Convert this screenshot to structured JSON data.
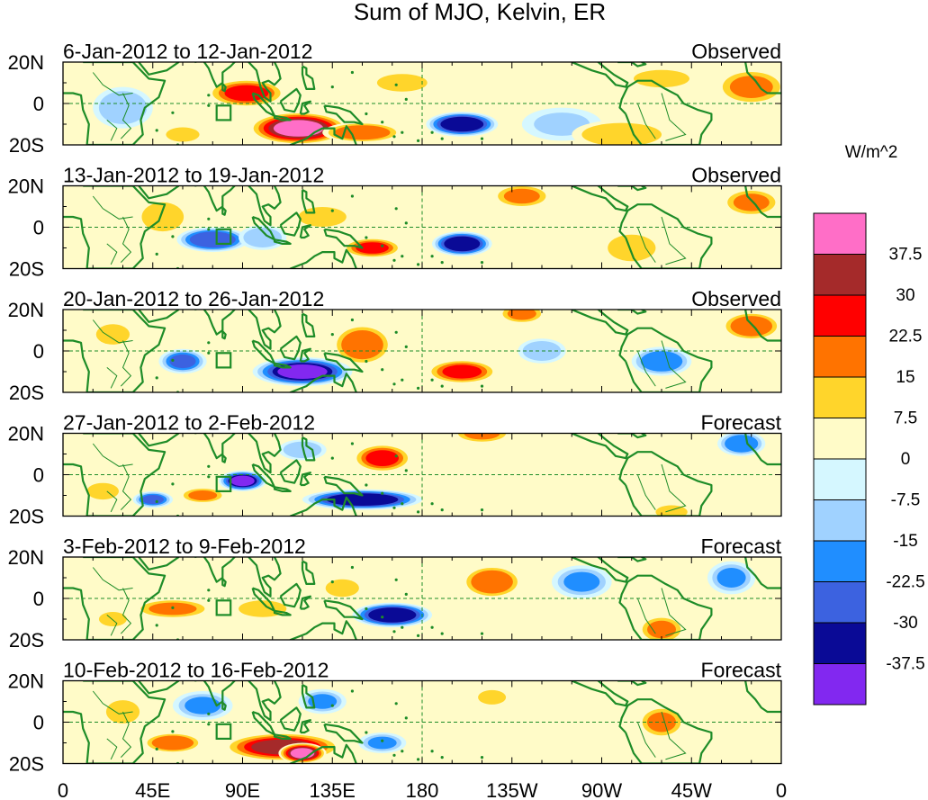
{
  "title": "Sum of MJO, Kelvin, ER",
  "panels": [
    {
      "date_range": "6-Jan-2012 to 12-Jan-2012",
      "status": "Observed",
      "blobs": [
        {
          "lon": 92,
          "lat": 5,
          "rx": 20,
          "ry": 7,
          "v": 25
        },
        {
          "lon": 118,
          "lat": -12,
          "rx": 25,
          "ry": 8,
          "v": 38
        },
        {
          "lon": 150,
          "lat": -14,
          "rx": 20,
          "ry": 5,
          "v": 22
        },
        {
          "lon": 200,
          "lat": -10,
          "rx": 18,
          "ry": 6,
          "v": -36
        },
        {
          "lon": 30,
          "lat": -2,
          "rx": 15,
          "ry": 10,
          "v": -12
        },
        {
          "lon": 250,
          "lat": -10,
          "rx": 20,
          "ry": 8,
          "v": -8
        },
        {
          "lon": 345,
          "lat": 8,
          "rx": 18,
          "ry": 9,
          "v": 16
        },
        {
          "lon": 280,
          "lat": -15,
          "rx": 25,
          "ry": 7,
          "v": 14
        },
        {
          "lon": 170,
          "lat": 10,
          "rx": 18,
          "ry": 6,
          "v": 9
        },
        {
          "lon": 60,
          "lat": -15,
          "rx": 12,
          "ry": 5,
          "v": 10
        },
        {
          "lon": 300,
          "lat": 12,
          "rx": 20,
          "ry": 6,
          "v": 9
        }
      ]
    },
    {
      "date_range": "13-Jan-2012 to 19-Jan-2012",
      "status": "Observed",
      "blobs": [
        {
          "lon": 75,
          "lat": -6,
          "rx": 18,
          "ry": 6,
          "v": -30
        },
        {
          "lon": 155,
          "lat": -10,
          "rx": 15,
          "ry": 5,
          "v": 24
        },
        {
          "lon": 200,
          "lat": -8,
          "rx": 15,
          "ry": 6,
          "v": -36
        },
        {
          "lon": 130,
          "lat": 5,
          "rx": 15,
          "ry": 6,
          "v": 12
        },
        {
          "lon": 230,
          "lat": 15,
          "rx": 15,
          "ry": 6,
          "v": 18
        },
        {
          "lon": 345,
          "lat": 12,
          "rx": 15,
          "ry": 7,
          "v": 18
        },
        {
          "lon": 50,
          "lat": 5,
          "rx": 15,
          "ry": 10,
          "v": 11
        },
        {
          "lon": 285,
          "lat": -10,
          "rx": 15,
          "ry": 8,
          "v": 12
        },
        {
          "lon": 100,
          "lat": -5,
          "rx": 12,
          "ry": 6,
          "v": -14
        }
      ]
    },
    {
      "date_range": "20-Jan-2012 to 26-Jan-2012",
      "status": "Observed",
      "blobs": [
        {
          "lon": 120,
          "lat": -10,
          "rx": 25,
          "ry": 7,
          "v": -38
        },
        {
          "lon": 60,
          "lat": -5,
          "rx": 12,
          "ry": 6,
          "v": -26
        },
        {
          "lon": 150,
          "lat": 3,
          "rx": 15,
          "ry": 10,
          "v": 22
        },
        {
          "lon": 200,
          "lat": -10,
          "rx": 18,
          "ry": 6,
          "v": 25
        },
        {
          "lon": 230,
          "lat": 18,
          "rx": 12,
          "ry": 5,
          "v": 18
        },
        {
          "lon": 345,
          "lat": 12,
          "rx": 15,
          "ry": 7,
          "v": 22
        },
        {
          "lon": 300,
          "lat": -5,
          "rx": 15,
          "ry": 7,
          "v": -20
        },
        {
          "lon": 240,
          "lat": 0,
          "rx": 12,
          "ry": 6,
          "v": -12
        },
        {
          "lon": 25,
          "lat": 8,
          "rx": 12,
          "ry": 7,
          "v": 9
        }
      ]
    },
    {
      "date_range": "27-Jan-2012 to 2-Feb-2012",
      "status": "Forecast",
      "blobs": [
        {
          "lon": 150,
          "lat": -12,
          "rx": 30,
          "ry": 5,
          "v": -34
        },
        {
          "lon": 90,
          "lat": -3,
          "rx": 12,
          "ry": 5,
          "v": -38
        },
        {
          "lon": 45,
          "lat": -12,
          "rx": 10,
          "ry": 4,
          "v": -25
        },
        {
          "lon": 160,
          "lat": 8,
          "rx": 15,
          "ry": 7,
          "v": 24
        },
        {
          "lon": 70,
          "lat": -10,
          "rx": 12,
          "ry": 4,
          "v": 18
        },
        {
          "lon": 210,
          "lat": 20,
          "rx": 15,
          "ry": 5,
          "v": 18
        },
        {
          "lon": 340,
          "lat": 15,
          "rx": 12,
          "ry": 6,
          "v": -20
        },
        {
          "lon": 305,
          "lat": -18,
          "rx": 10,
          "ry": 4,
          "v": 12
        },
        {
          "lon": 20,
          "lat": -8,
          "rx": 10,
          "ry": 5,
          "v": 14
        },
        {
          "lon": 120,
          "lat": 12,
          "rx": 12,
          "ry": 5,
          "v": -14
        }
      ]
    },
    {
      "date_range": "3-Feb-2012 to 9-Feb-2012",
      "status": "Forecast",
      "blobs": [
        {
          "lon": 165,
          "lat": -8,
          "rx": 20,
          "ry": 6,
          "v": -34
        },
        {
          "lon": 215,
          "lat": 8,
          "rx": 15,
          "ry": 8,
          "v": 22
        },
        {
          "lon": 260,
          "lat": 8,
          "rx": 15,
          "ry": 8,
          "v": -18
        },
        {
          "lon": 300,
          "lat": -15,
          "rx": 12,
          "ry": 7,
          "v": 18
        },
        {
          "lon": 335,
          "lat": 10,
          "rx": 12,
          "ry": 8,
          "v": -18
        },
        {
          "lon": 55,
          "lat": -5,
          "rx": 20,
          "ry": 5,
          "v": 15
        },
        {
          "lon": 100,
          "lat": -5,
          "rx": 15,
          "ry": 5,
          "v": 12
        },
        {
          "lon": 140,
          "lat": 5,
          "rx": 12,
          "ry": 6,
          "v": 9
        },
        {
          "lon": 25,
          "lat": -10,
          "rx": 10,
          "ry": 5,
          "v": 10
        }
      ]
    },
    {
      "date_range": "10-Feb-2012 to 16-Feb-2012",
      "status": "Forecast",
      "blobs": [
        {
          "lon": 110,
          "lat": -12,
          "rx": 30,
          "ry": 7,
          "v": 32
        },
        {
          "lon": 120,
          "lat": -15,
          "rx": 12,
          "ry": 5,
          "v": 38
        },
        {
          "lon": 55,
          "lat": -10,
          "rx": 15,
          "ry": 5,
          "v": 22
        },
        {
          "lon": 70,
          "lat": 8,
          "rx": 15,
          "ry": 7,
          "v": -18
        },
        {
          "lon": 130,
          "lat": 10,
          "rx": 12,
          "ry": 6,
          "v": -16
        },
        {
          "lon": 160,
          "lat": -10,
          "rx": 12,
          "ry": 5,
          "v": -18
        },
        {
          "lon": 300,
          "lat": 0,
          "rx": 12,
          "ry": 8,
          "v": 16
        },
        {
          "lon": 215,
          "lat": 12,
          "rx": 10,
          "ry": 5,
          "v": 9
        },
        {
          "lon": 30,
          "lat": 5,
          "rx": 12,
          "ry": 8,
          "v": 8
        }
      ]
    }
  ],
  "axes": {
    "lat_ticks": [
      {
        "label": "20N",
        "lat": 20
      },
      {
        "label": "0",
        "lat": 0
      },
      {
        "label": "20S",
        "lat": -20
      }
    ],
    "lon_ticks": [
      {
        "label": "0",
        "lon": 0
      },
      {
        "label": "45E",
        "lon": 45
      },
      {
        "label": "90E",
        "lon": 90
      },
      {
        "label": "135E",
        "lon": 135
      },
      {
        "label": "180",
        "lon": 180
      },
      {
        "label": "135W",
        "lon": 225
      },
      {
        "label": "90W",
        "lon": 270
      },
      {
        "label": "45W",
        "lon": 315
      },
      {
        "label": "0",
        "lon": 360
      }
    ],
    "lon_range": [
      0,
      360
    ],
    "lat_range": [
      -20,
      20
    ],
    "highlight_box": {
      "lon_min": 77,
      "lon_max": 84,
      "lat_min": -8,
      "lat_max": -1
    }
  },
  "colorbar": {
    "title": "W/m^2",
    "levels": [
      "37.5",
      "30",
      "22.5",
      "15",
      "7.5",
      "0",
      "-7.5",
      "-15",
      "-22.5",
      "-30",
      "-37.5"
    ],
    "colors": [
      "#ff6ec7",
      "#a52a2a",
      "#ff0000",
      "#ff7300",
      "#ffd52b",
      "#fffbc8",
      "#d5f7ff",
      "#a0d2ff",
      "#208eff",
      "#3c62e0",
      "#0a0a96",
      "#8228f0"
    ]
  },
  "style": {
    "coast_color": "#1e8c28",
    "grid_color": "#1e8c28",
    "background": "#ffffff"
  }
}
